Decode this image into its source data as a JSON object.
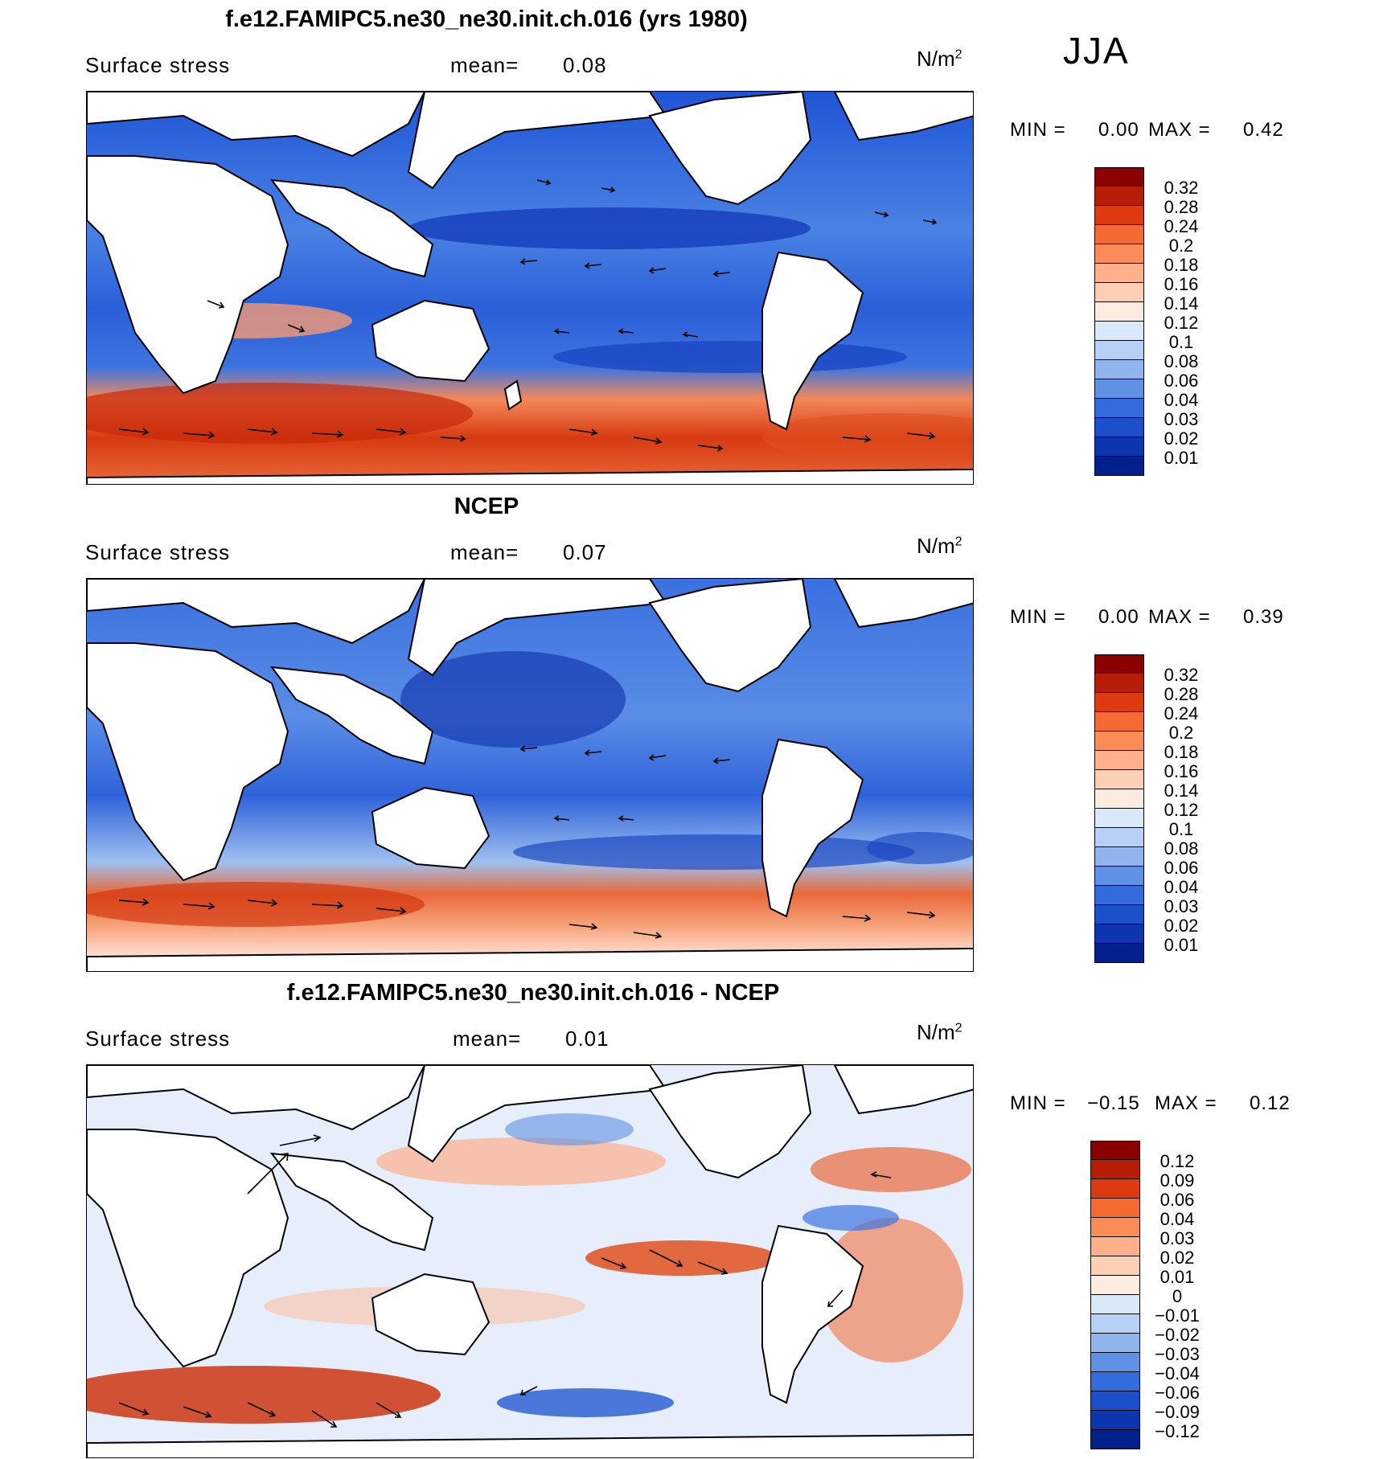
{
  "season": "JJA",
  "panels": [
    {
      "title": "f.e12.FAMIPC5.ne30_ne30.init.ch.016 (yrs 1980)",
      "variable": "Surface stress",
      "mean_label": "mean=",
      "mean": "0.08",
      "units_base": "N/m",
      "units_exp": "2",
      "min_label": "MIN =",
      "min": "0.00",
      "max_label": "MAX =",
      "max": "0.42",
      "colorbar": {
        "labels": [
          "0.32",
          "0.28",
          "0.24",
          "0.2",
          "0.18",
          "0.16",
          "0.14",
          "0.12",
          "0.1",
          "0.08",
          "0.06",
          "0.04",
          "0.03",
          "0.02",
          "0.01"
        ],
        "colors": [
          "#8b0000",
          "#b81d07",
          "#de3a10",
          "#f46a32",
          "#fa8c58",
          "#fdb08a",
          "#fdd0b6",
          "#fdecdf",
          "#d9e9f9",
          "#b6d1f3",
          "#8fb5ec",
          "#5f91e4",
          "#336ddd",
          "#1c4fcc",
          "#0e35b0",
          "#00208b"
        ]
      }
    },
    {
      "title": "NCEP",
      "variable": "Surface stress",
      "mean_label": "mean=",
      "mean": "0.07",
      "units_base": "N/m",
      "units_exp": "2",
      "min_label": "MIN =",
      "min": "0.00",
      "max_label": "MAX =",
      "max": "0.39",
      "colorbar": {
        "labels": [
          "0.32",
          "0.28",
          "0.24",
          "0.2",
          "0.18",
          "0.16",
          "0.14",
          "0.12",
          "0.1",
          "0.08",
          "0.06",
          "0.04",
          "0.03",
          "0.02",
          "0.01"
        ],
        "colors": [
          "#8b0000",
          "#b81d07",
          "#de3a10",
          "#f46a32",
          "#fa8c58",
          "#fdb08a",
          "#fdd0b6",
          "#fdecdf",
          "#d9e9f9",
          "#b6d1f3",
          "#8fb5ec",
          "#5f91e4",
          "#336ddd",
          "#1c4fcc",
          "#0e35b0",
          "#00208b"
        ]
      }
    },
    {
      "title": "f.e12.FAMIPC5.ne30_ne30.init.ch.016 - NCEP",
      "variable": "Surface stress",
      "mean_label": "mean=",
      "mean": "0.01",
      "units_base": "N/m",
      "units_exp": "2",
      "min_label": "MIN =",
      "min": "−0.15",
      "max_label": "MAX =",
      "max": "0.12",
      "colorbar": {
        "labels": [
          "0.12",
          "0.09",
          "0.06",
          "0.04",
          "0.03",
          "0.02",
          "0.01",
          "0",
          "−0.01",
          "−0.02",
          "−0.03",
          "−0.04",
          "−0.06",
          "−0.09",
          "−0.12"
        ],
        "colors": [
          "#8b0000",
          "#b81d07",
          "#de3a10",
          "#f46a32",
          "#fa8c58",
          "#fdb08a",
          "#fdd0b6",
          "#fdecdf",
          "#d9e9f9",
          "#b6d1f3",
          "#8fb5ec",
          "#5f91e4",
          "#336ddd",
          "#1c4fcc",
          "#0e35b0",
          "#00208b"
        ]
      }
    }
  ],
  "chart_data": [
    {
      "type": "heatmap",
      "title": "f.e12.FAMIPC5.ne30_ne30.init.ch.016 (yrs 1980)",
      "subtitle": "Surface stress",
      "mean": 0.08,
      "min": 0.0,
      "max": 0.42,
      "units": "N/m2",
      "levels": [
        0.01,
        0.02,
        0.03,
        0.04,
        0.06,
        0.08,
        0.1,
        0.12,
        0.14,
        0.16,
        0.18,
        0.2,
        0.24,
        0.28,
        0.32
      ]
    },
    {
      "type": "heatmap",
      "title": "NCEP",
      "subtitle": "Surface stress",
      "mean": 0.07,
      "min": 0.0,
      "max": 0.39,
      "units": "N/m2",
      "levels": [
        0.01,
        0.02,
        0.03,
        0.04,
        0.06,
        0.08,
        0.1,
        0.12,
        0.14,
        0.16,
        0.18,
        0.2,
        0.24,
        0.28,
        0.32
      ]
    },
    {
      "type": "heatmap",
      "title": "f.e12.FAMIPC5.ne30_ne30.init.ch.016 - NCEP",
      "subtitle": "Surface stress",
      "mean": 0.01,
      "min": -0.15,
      "max": 0.12,
      "units": "N/m2",
      "levels": [
        -0.12,
        -0.09,
        -0.06,
        -0.04,
        -0.03,
        -0.02,
        -0.01,
        0,
        0.01,
        0.02,
        0.03,
        0.04,
        0.06,
        0.09,
        0.12
      ]
    }
  ]
}
